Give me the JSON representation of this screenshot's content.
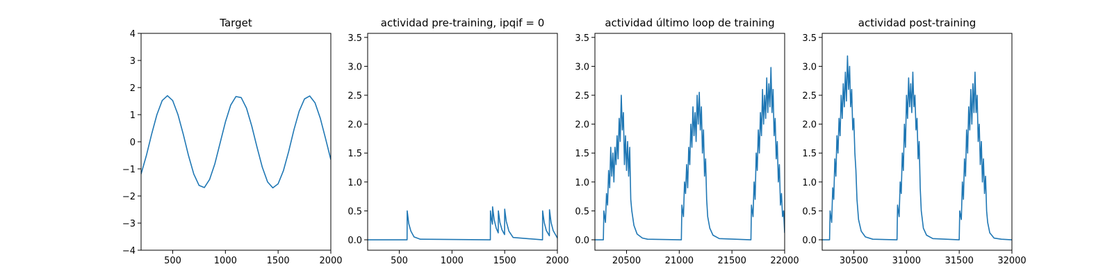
{
  "chart_data": [
    {
      "type": "line",
      "title": "Target",
      "x": [
        200,
        250,
        300,
        350,
        400,
        450,
        500,
        550,
        600,
        650,
        700,
        750,
        800,
        850,
        900,
        950,
        1000,
        1050,
        1100,
        1150,
        1200,
        1250,
        1300,
        1350,
        1400,
        1450,
        1500,
        1550,
        1600,
        1650,
        1700,
        1750,
        1800,
        1850,
        1900,
        1950,
        2000
      ],
      "values": [
        -1.19,
        -0.51,
        0.28,
        1.0,
        1.52,
        1.7,
        1.52,
        1.0,
        0.28,
        -0.51,
        -1.19,
        -1.61,
        -1.69,
        -1.39,
        -0.81,
        -0.04,
        0.73,
        1.35,
        1.67,
        1.63,
        1.24,
        0.58,
        -0.2,
        -0.94,
        -1.48,
        -1.7,
        -1.55,
        -1.07,
        -0.36,
        0.44,
        1.13,
        1.58,
        1.69,
        1.44,
        0.87,
        0.12,
        -0.66
      ],
      "color": "#1f77b4",
      "xlim": [
        200,
        2000
      ],
      "xticks": [
        500,
        1000,
        1500,
        2000
      ],
      "ylim": [
        -4,
        4
      ],
      "yticks": [
        {
          "value": -4,
          "label": "−4"
        },
        {
          "value": -3,
          "label": "−3"
        },
        {
          "value": -2,
          "label": "−2"
        },
        {
          "value": -1,
          "label": "−1"
        },
        0,
        1,
        2,
        3,
        4
      ]
    },
    {
      "type": "line",
      "title": "actividad pre-training, ipqif = 0",
      "x": [
        200,
        574,
        575,
        590,
        610,
        640,
        700,
        1364,
        1365,
        1375,
        1384,
        1385,
        1400,
        1420,
        1439,
        1440,
        1455,
        1475,
        1499,
        1500,
        1515,
        1540,
        1580,
        1859,
        1860,
        1875,
        1895,
        1924,
        1925,
        1940,
        1960,
        2000
      ],
      "values": [
        0,
        0,
        0.5,
        0.28,
        0.15,
        0.05,
        0.01,
        0,
        0.5,
        0.35,
        0.27,
        0.57,
        0.35,
        0.2,
        0.12,
        0.5,
        0.3,
        0.17,
        0.09,
        0.53,
        0.32,
        0.15,
        0.04,
        0,
        0.5,
        0.3,
        0.16,
        0.07,
        0.52,
        0.3,
        0.16,
        0.03
      ],
      "color": "#1f77b4",
      "xlim": [
        200,
        2000
      ],
      "xticks": [
        500,
        1000,
        1500,
        2000
      ],
      "ylim": [
        -0.18,
        3.57
      ],
      "yticks": [
        {
          "value": 0,
          "label": "0.0"
        },
        0.5,
        {
          "value": 1,
          "label": "1.0"
        },
        1.5,
        {
          "value": 2,
          "label": "2.0"
        },
        2.5,
        {
          "value": 3,
          "label": "3.0"
        },
        3.5
      ]
    },
    {
      "type": "line",
      "title": "actividad último loop de training",
      "x": [
        20200,
        20280,
        20285,
        20300,
        20310,
        20320,
        20330,
        20340,
        20350,
        20360,
        20370,
        20380,
        20390,
        20400,
        20410,
        20420,
        20430,
        20440,
        20450,
        20460,
        20470,
        20480,
        20490,
        20500,
        20510,
        20520,
        20530,
        20540,
        20550,
        20570,
        20600,
        20650,
        20700,
        21020,
        21025,
        21040,
        21050,
        21060,
        21070,
        21080,
        21090,
        21100,
        21110,
        21120,
        21130,
        21140,
        21150,
        21160,
        21170,
        21180,
        21190,
        21200,
        21210,
        21220,
        21230,
        21240,
        21250,
        21260,
        21270,
        21290,
        21320,
        21380,
        21680,
        21685,
        21700,
        21710,
        21720,
        21730,
        21740,
        21750,
        21760,
        21770,
        21780,
        21790,
        21800,
        21810,
        21820,
        21830,
        21840,
        21850,
        21860,
        21870,
        21880,
        21890,
        21900,
        21910,
        21920,
        21930,
        21940,
        21950,
        21960,
        21970,
        21980,
        21990,
        22000
      ],
      "values": [
        0,
        0,
        0.5,
        0.3,
        0.8,
        0.6,
        1.2,
        0.9,
        1.6,
        1.1,
        1.5,
        1.0,
        1.6,
        1.3,
        1.8,
        1.4,
        2.1,
        1.7,
        2.5,
        1.9,
        2.2,
        1.3,
        1.8,
        1.2,
        1.7,
        1.1,
        1.6,
        0.7,
        0.5,
        0.25,
        0.1,
        0.03,
        0.01,
        0,
        0.6,
        0.4,
        1.0,
        0.8,
        1.3,
        0.9,
        1.6,
        1.3,
        2.0,
        1.6,
        2.3,
        1.8,
        2.2,
        1.7,
        2.5,
        2.0,
        2.55,
        1.9,
        2.3,
        1.5,
        1.9,
        1.1,
        1.4,
        0.7,
        0.4,
        0.2,
        0.08,
        0.02,
        0,
        0.6,
        0.4,
        1.0,
        0.7,
        1.5,
        1.2,
        1.9,
        1.5,
        2.2,
        1.8,
        2.6,
        2.0,
        2.5,
        2.1,
        2.8,
        2.2,
        2.7,
        2.3,
        2.98,
        2.2,
        2.6,
        1.8,
        2.1,
        1.4,
        1.7,
        1.0,
        1.3,
        0.6,
        0.8,
        0.4,
        0.5,
        0.12
      ],
      "color": "#1f77b4",
      "xlim": [
        20200,
        22000
      ],
      "xticks": [
        20500,
        21000,
        21500,
        22000
      ],
      "ylim": [
        -0.18,
        3.57
      ],
      "yticks": [
        {
          "value": 0,
          "label": "0.0"
        },
        0.5,
        {
          "value": 1,
          "label": "1.0"
        },
        1.5,
        {
          "value": 2,
          "label": "2.0"
        },
        2.5,
        {
          "value": 3,
          "label": "3.0"
        },
        3.5
      ]
    },
    {
      "type": "line",
      "title": "actividad post-training",
      "x": [
        30200,
        30270,
        30275,
        30290,
        30300,
        30310,
        30320,
        30330,
        30340,
        30350,
        30360,
        30370,
        30380,
        30390,
        30400,
        30410,
        30420,
        30430,
        30440,
        30450,
        30460,
        30470,
        30480,
        30490,
        30500,
        30510,
        30520,
        30530,
        30545,
        30570,
        30610,
        30680,
        30910,
        30915,
        30930,
        30940,
        30950,
        30960,
        30970,
        30980,
        30990,
        31000,
        31010,
        31020,
        31030,
        31040,
        31050,
        31060,
        31070,
        31080,
        31090,
        31100,
        31110,
        31120,
        31130,
        31140,
        31160,
        31190,
        31250,
        31500,
        31505,
        31520,
        31530,
        31540,
        31550,
        31560,
        31570,
        31580,
        31590,
        31600,
        31610,
        31620,
        31630,
        31640,
        31650,
        31660,
        31670,
        31680,
        31690,
        31700,
        31710,
        31720,
        31730,
        31740,
        31750,
        31760,
        31770,
        31790,
        31830,
        31900,
        32000
      ],
      "values": [
        0,
        0,
        0.5,
        0.3,
        0.9,
        0.7,
        1.4,
        1.1,
        1.8,
        1.5,
        2.1,
        1.8,
        2.5,
        2.1,
        2.7,
        2.3,
        2.9,
        2.4,
        3.18,
        2.6,
        3.0,
        2.3,
        2.6,
        1.9,
        2.1,
        1.5,
        1.2,
        0.7,
        0.35,
        0.15,
        0.05,
        0.01,
        0,
        0.6,
        0.4,
        1.0,
        0.8,
        1.5,
        1.2,
        2.0,
        1.6,
        2.5,
        2.1,
        2.8,
        2.3,
        2.7,
        2.2,
        2.9,
        2.3,
        2.5,
        1.9,
        2.1,
        1.4,
        1.7,
        0.9,
        0.5,
        0.2,
        0.08,
        0.02,
        0,
        0.5,
        0.35,
        1.0,
        0.7,
        1.4,
        1.1,
        1.9,
        1.5,
        2.3,
        1.9,
        2.6,
        2.0,
        2.7,
        2.2,
        2.9,
        2.2,
        2.5,
        1.7,
        2.0,
        1.3,
        1.7,
        1.0,
        1.4,
        0.8,
        1.1,
        0.5,
        0.3,
        0.12,
        0.03,
        0.01,
        0
      ],
      "color": "#1f77b4",
      "xlim": [
        30200,
        32000
      ],
      "xticks": [
        30500,
        31000,
        31500,
        32000
      ],
      "ylim": [
        -0.18,
        3.57
      ],
      "yticks": [
        {
          "value": 0,
          "label": "0.0"
        },
        0.5,
        {
          "value": 1,
          "label": "1.0"
        },
        1.5,
        {
          "value": 2,
          "label": "2.0"
        },
        2.5,
        {
          "value": 3,
          "label": "3.0"
        },
        3.5
      ]
    }
  ]
}
